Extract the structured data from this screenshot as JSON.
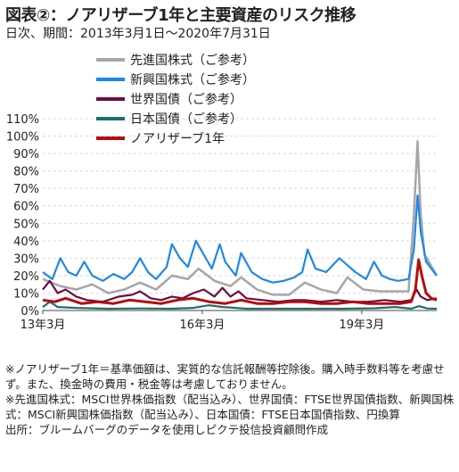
{
  "title": "図表②：ノアリザーブ1年と主要資産のリスク推移",
  "subtitle": "日次、期間：2013年3月1日～2020年7月31日",
  "notes": [
    "※ノアリザーブ1年＝基準価額は、実質的な信託報酬等控除後。購入時手数料等を考慮せず。また、換金時の費用・税金等は考慮しておりません。",
    "※先進国株式：MSCI世界株価指数（配当込み）、世界国債：FTSE世界国債指数、新興国株式：MSCI新興国株価指数（配当込み）、日本国債：FTSE日本国債指数、円換算",
    "出所：ブルームバーグのデータを使用しピクテ投信投資顧問作成"
  ],
  "chart_data": {
    "type": "line",
    "x_range": [
      2013.17,
      2020.58
    ],
    "ylim": [
      0,
      110
    ],
    "y_ticks": [
      0,
      10,
      20,
      30,
      40,
      50,
      60,
      70,
      80,
      90,
      100,
      110
    ],
    "y_tick_labels": [
      "0%",
      "10%",
      "20%",
      "30%",
      "40%",
      "50%",
      "60%",
      "70%",
      "80%",
      "90%",
      "100%",
      "110%"
    ],
    "x_ticks": [
      2013.17,
      2016.17,
      2019.17
    ],
    "x_tick_labels": [
      "13年3月",
      "16年3月",
      "19年3月"
    ],
    "legend_position": "top-left",
    "series": [
      {
        "name": "先進国株式（ご参考）",
        "color": "#a6a6a6",
        "points": [
          [
            2013.17,
            18
          ],
          [
            2013.5,
            14
          ],
          [
            2013.8,
            12
          ],
          [
            2014.1,
            15
          ],
          [
            2014.4,
            10
          ],
          [
            2014.7,
            12
          ],
          [
            2015.0,
            16
          ],
          [
            2015.3,
            12
          ],
          [
            2015.6,
            20
          ],
          [
            2015.9,
            18
          ],
          [
            2016.1,
            24
          ],
          [
            2016.4,
            17
          ],
          [
            2016.7,
            14
          ],
          [
            2016.9,
            19
          ],
          [
            2017.2,
            12
          ],
          [
            2017.5,
            9
          ],
          [
            2017.8,
            9
          ],
          [
            2018.1,
            16
          ],
          [
            2018.4,
            12
          ],
          [
            2018.7,
            10
          ],
          [
            2018.9,
            19
          ],
          [
            2019.2,
            12
          ],
          [
            2019.5,
            11
          ],
          [
            2019.8,
            11
          ],
          [
            2020.05,
            11
          ],
          [
            2020.15,
            55
          ],
          [
            2020.22,
            97
          ],
          [
            2020.28,
            55
          ],
          [
            2020.35,
            32
          ],
          [
            2020.45,
            27
          ],
          [
            2020.58,
            20
          ]
        ]
      },
      {
        "name": "新興国株式（ご参考）",
        "color": "#1e88e5",
        "points": [
          [
            2013.17,
            22
          ],
          [
            2013.35,
            18
          ],
          [
            2013.5,
            30
          ],
          [
            2013.65,
            22
          ],
          [
            2013.8,
            20
          ],
          [
            2013.95,
            28
          ],
          [
            2014.1,
            20
          ],
          [
            2014.3,
            17
          ],
          [
            2014.5,
            21
          ],
          [
            2014.7,
            18
          ],
          [
            2014.85,
            22
          ],
          [
            2015.0,
            30
          ],
          [
            2015.15,
            22
          ],
          [
            2015.3,
            18
          ],
          [
            2015.5,
            25
          ],
          [
            2015.6,
            38
          ],
          [
            2015.75,
            30
          ],
          [
            2015.9,
            25
          ],
          [
            2016.05,
            40
          ],
          [
            2016.2,
            32
          ],
          [
            2016.35,
            24
          ],
          [
            2016.5,
            38
          ],
          [
            2016.6,
            28
          ],
          [
            2016.8,
            20
          ],
          [
            2016.9,
            33
          ],
          [
            2017.1,
            22
          ],
          [
            2017.3,
            18
          ],
          [
            2017.5,
            16
          ],
          [
            2017.7,
            17
          ],
          [
            2017.9,
            19
          ],
          [
            2018.05,
            22
          ],
          [
            2018.15,
            35
          ],
          [
            2018.3,
            24
          ],
          [
            2018.5,
            22
          ],
          [
            2018.75,
            30
          ],
          [
            2018.9,
            26
          ],
          [
            2019.05,
            22
          ],
          [
            2019.25,
            18
          ],
          [
            2019.4,
            28
          ],
          [
            2019.55,
            20
          ],
          [
            2019.7,
            18
          ],
          [
            2019.85,
            17
          ],
          [
            2020.05,
            18
          ],
          [
            2020.15,
            35
          ],
          [
            2020.22,
            66
          ],
          [
            2020.28,
            45
          ],
          [
            2020.38,
            28
          ],
          [
            2020.48,
            24
          ],
          [
            2020.58,
            20
          ]
        ]
      },
      {
        "name": "世界国債（ご参考）",
        "color": "#6a0d45",
        "points": [
          [
            2013.17,
            12
          ],
          [
            2013.3,
            17
          ],
          [
            2013.45,
            10
          ],
          [
            2013.6,
            12
          ],
          [
            2013.8,
            8
          ],
          [
            2014.0,
            6
          ],
          [
            2014.3,
            5
          ],
          [
            2014.6,
            8
          ],
          [
            2014.85,
            9
          ],
          [
            2015.0,
            11
          ],
          [
            2015.2,
            7
          ],
          [
            2015.4,
            6
          ],
          [
            2015.6,
            8
          ],
          [
            2015.8,
            7
          ],
          [
            2016.0,
            10
          ],
          [
            2016.2,
            12
          ],
          [
            2016.4,
            8
          ],
          [
            2016.55,
            13
          ],
          [
            2016.7,
            8
          ],
          [
            2016.85,
            11
          ],
          [
            2017.0,
            7
          ],
          [
            2017.3,
            6
          ],
          [
            2017.6,
            5
          ],
          [
            2017.9,
            6
          ],
          [
            2018.1,
            6
          ],
          [
            2018.4,
            5
          ],
          [
            2018.7,
            6
          ],
          [
            2019.0,
            5
          ],
          [
            2019.3,
            5
          ],
          [
            2019.6,
            6
          ],
          [
            2019.9,
            5
          ],
          [
            2020.1,
            6
          ],
          [
            2020.2,
            12
          ],
          [
            2020.28,
            8
          ],
          [
            2020.4,
            6
          ],
          [
            2020.58,
            7
          ]
        ]
      },
      {
        "name": "日本国債（ご参考）",
        "color": "#1f6e6e",
        "points": [
          [
            2013.17,
            2
          ],
          [
            2013.3,
            5
          ],
          [
            2013.45,
            2
          ],
          [
            2013.8,
            1.5
          ],
          [
            2014.4,
            1
          ],
          [
            2015.0,
            1.2
          ],
          [
            2015.6,
            1
          ],
          [
            2016.0,
            1.5
          ],
          [
            2016.3,
            3
          ],
          [
            2016.55,
            2
          ],
          [
            2017.0,
            1
          ],
          [
            2017.6,
            1
          ],
          [
            2018.2,
            1
          ],
          [
            2018.8,
            1
          ],
          [
            2019.4,
            1.3
          ],
          [
            2019.8,
            2
          ],
          [
            2020.1,
            1
          ],
          [
            2020.25,
            2.5
          ],
          [
            2020.4,
            1.2
          ],
          [
            2020.58,
            1
          ]
        ]
      },
      {
        "name": "ノアリザーブ1年",
        "color": "#b50d0d",
        "points": [
          [
            2013.17,
            6
          ],
          [
            2013.4,
            5
          ],
          [
            2013.6,
            7
          ],
          [
            2013.9,
            4
          ],
          [
            2014.2,
            5
          ],
          [
            2014.5,
            4
          ],
          [
            2014.8,
            6
          ],
          [
            2015.1,
            5
          ],
          [
            2015.4,
            4
          ],
          [
            2015.7,
            6
          ],
          [
            2016.0,
            7
          ],
          [
            2016.3,
            5
          ],
          [
            2016.6,
            4
          ],
          [
            2016.9,
            6
          ],
          [
            2017.2,
            4
          ],
          [
            2017.5,
            4
          ],
          [
            2017.8,
            5
          ],
          [
            2018.1,
            5
          ],
          [
            2018.4,
            4
          ],
          [
            2018.7,
            4
          ],
          [
            2019.0,
            5
          ],
          [
            2019.3,
            4
          ],
          [
            2019.6,
            4
          ],
          [
            2019.9,
            4
          ],
          [
            2020.1,
            5
          ],
          [
            2020.18,
            12
          ],
          [
            2020.24,
            29
          ],
          [
            2020.3,
            20
          ],
          [
            2020.38,
            10
          ],
          [
            2020.48,
            7
          ],
          [
            2020.58,
            6
          ]
        ]
      }
    ]
  }
}
